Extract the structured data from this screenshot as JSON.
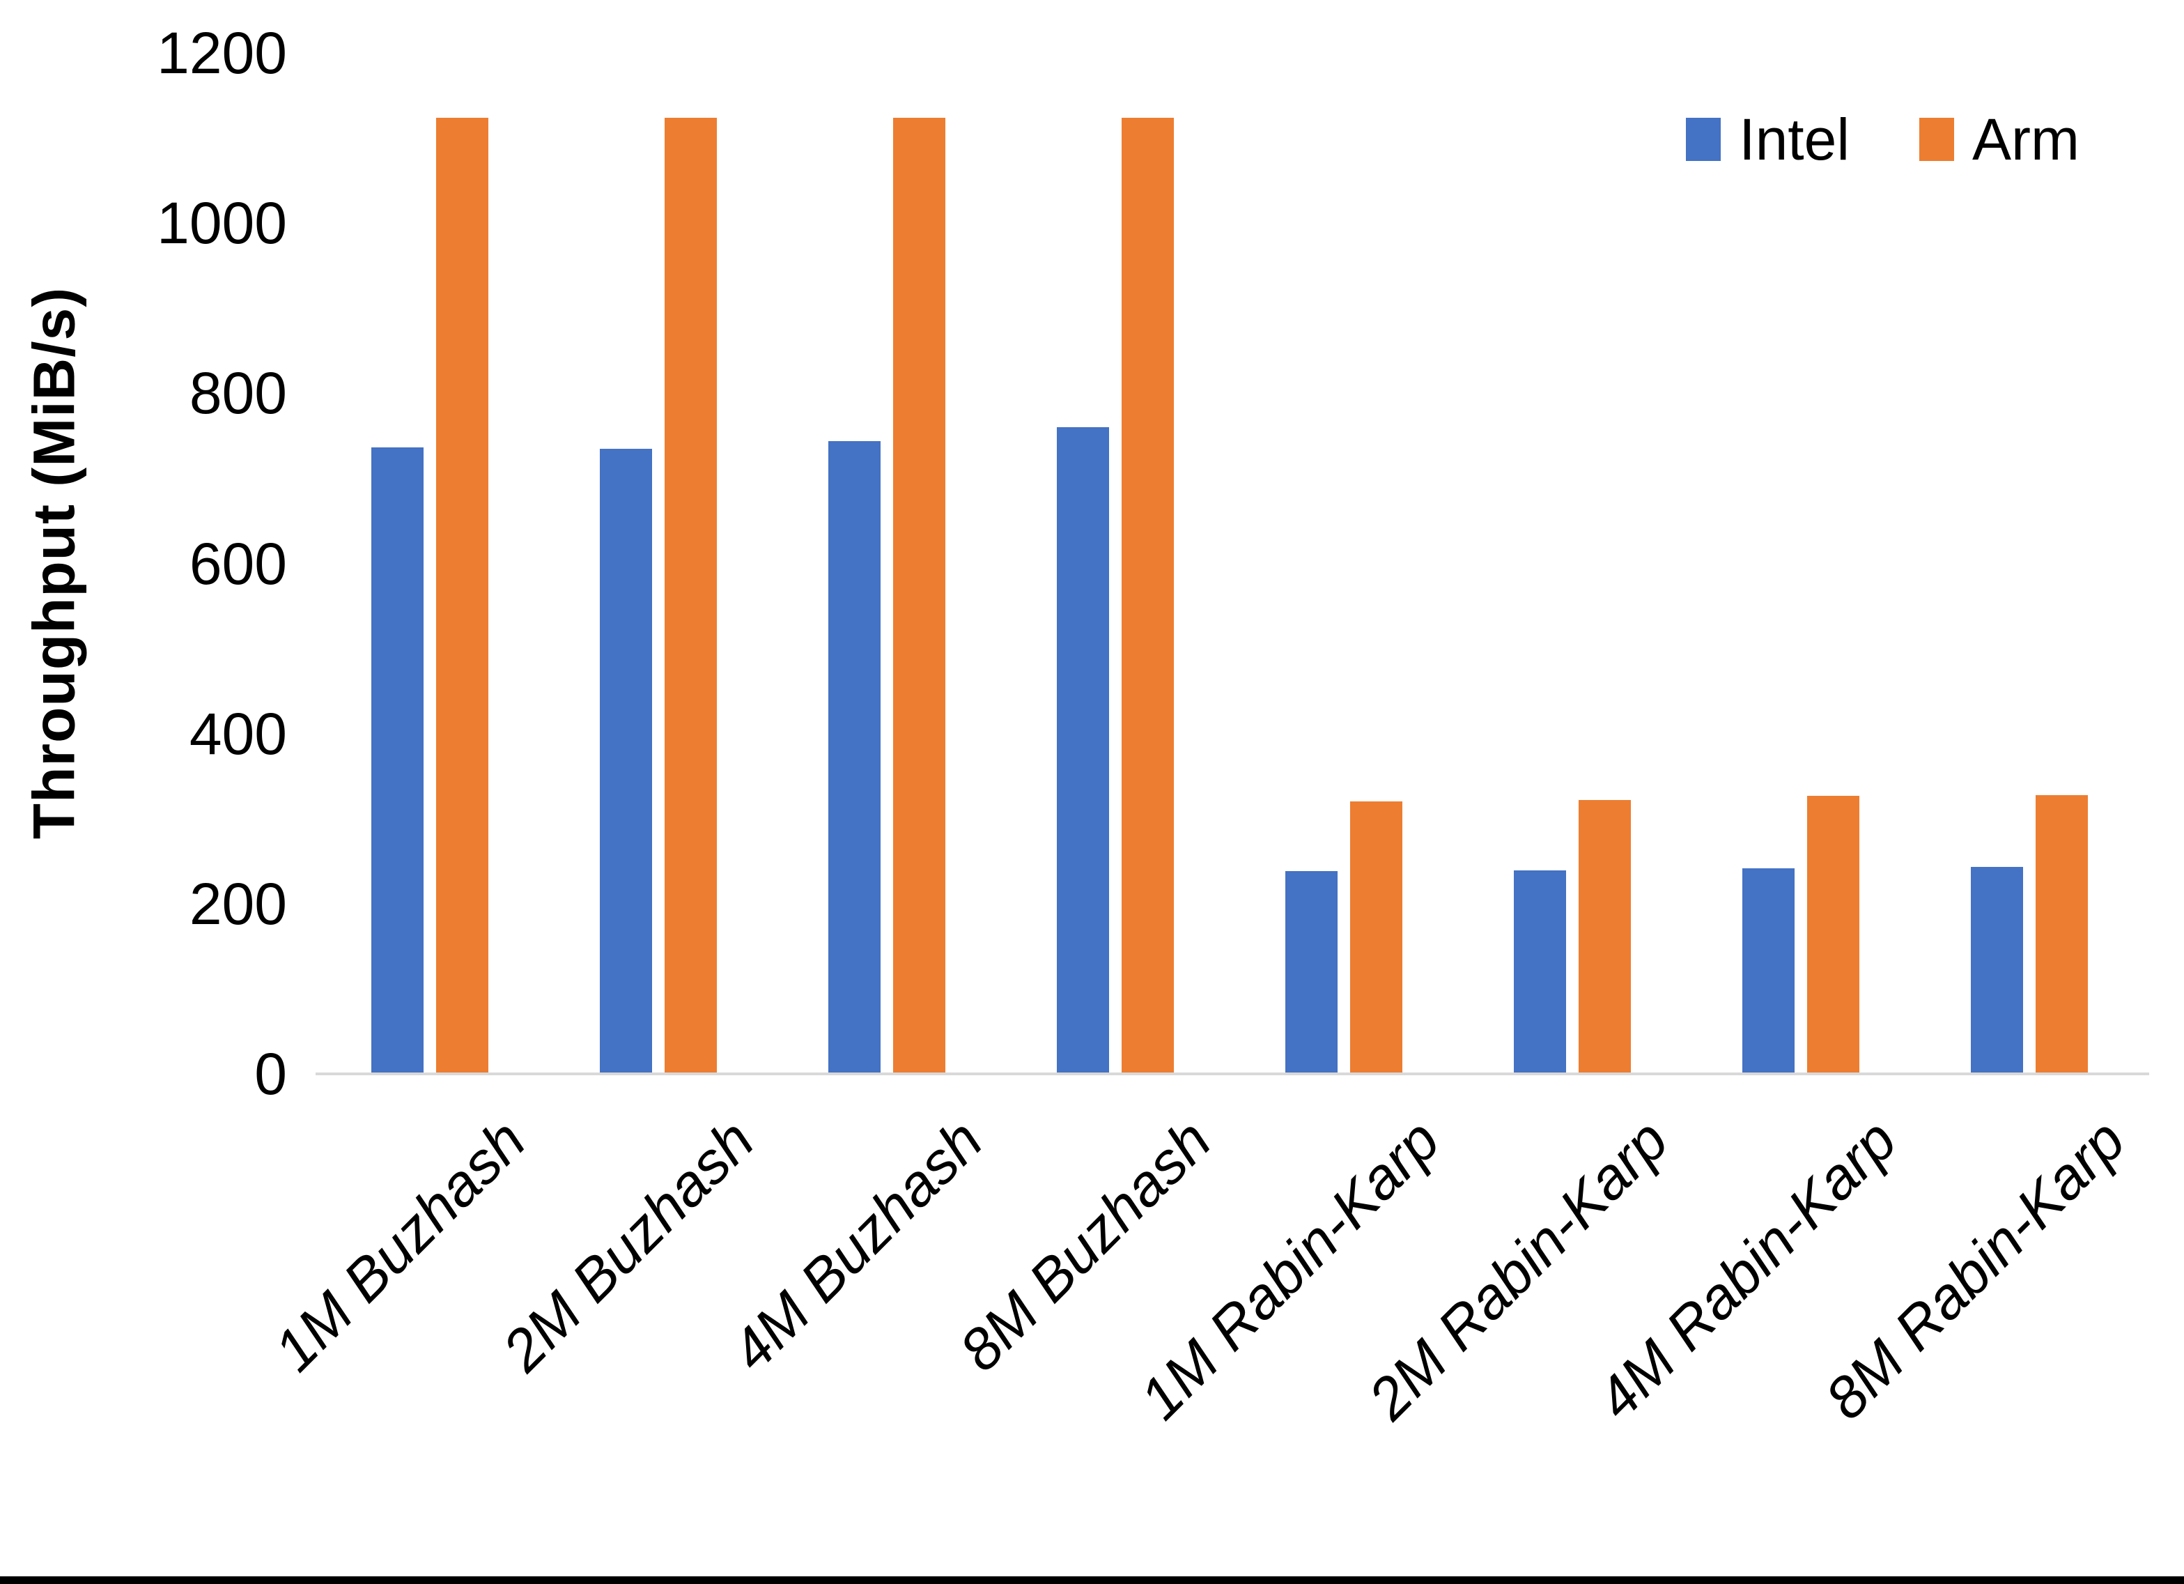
{
  "chart_data": {
    "type": "bar",
    "title": "",
    "xlabel": "",
    "ylabel": "Throughput (MiB/s)",
    "ylim": [
      0,
      1200
    ],
    "yticks": [
      0,
      200,
      400,
      600,
      800,
      1000,
      1200
    ],
    "grid": false,
    "legend_position": "top-right",
    "axis_line_color": "#d9d9d9",
    "categories": [
      "1M Buzhash",
      "2M Buzhash",
      "4M Buzhash",
      "8M Buzhash",
      "1M Rabin-Karp",
      "2M Rabin-Karp",
      "4M Rabin-Karp",
      "8M Rabin-Karp"
    ],
    "series": [
      {
        "name": "Intel",
        "color": "#4472C4",
        "values": [
          736,
          735,
          744,
          760,
          238,
          239,
          242,
          243
        ]
      },
      {
        "name": "Arm",
        "color": "#ED7D31",
        "values": [
          1124,
          1124,
          1124,
          1124,
          320,
          322,
          327,
          328
        ]
      }
    ]
  }
}
